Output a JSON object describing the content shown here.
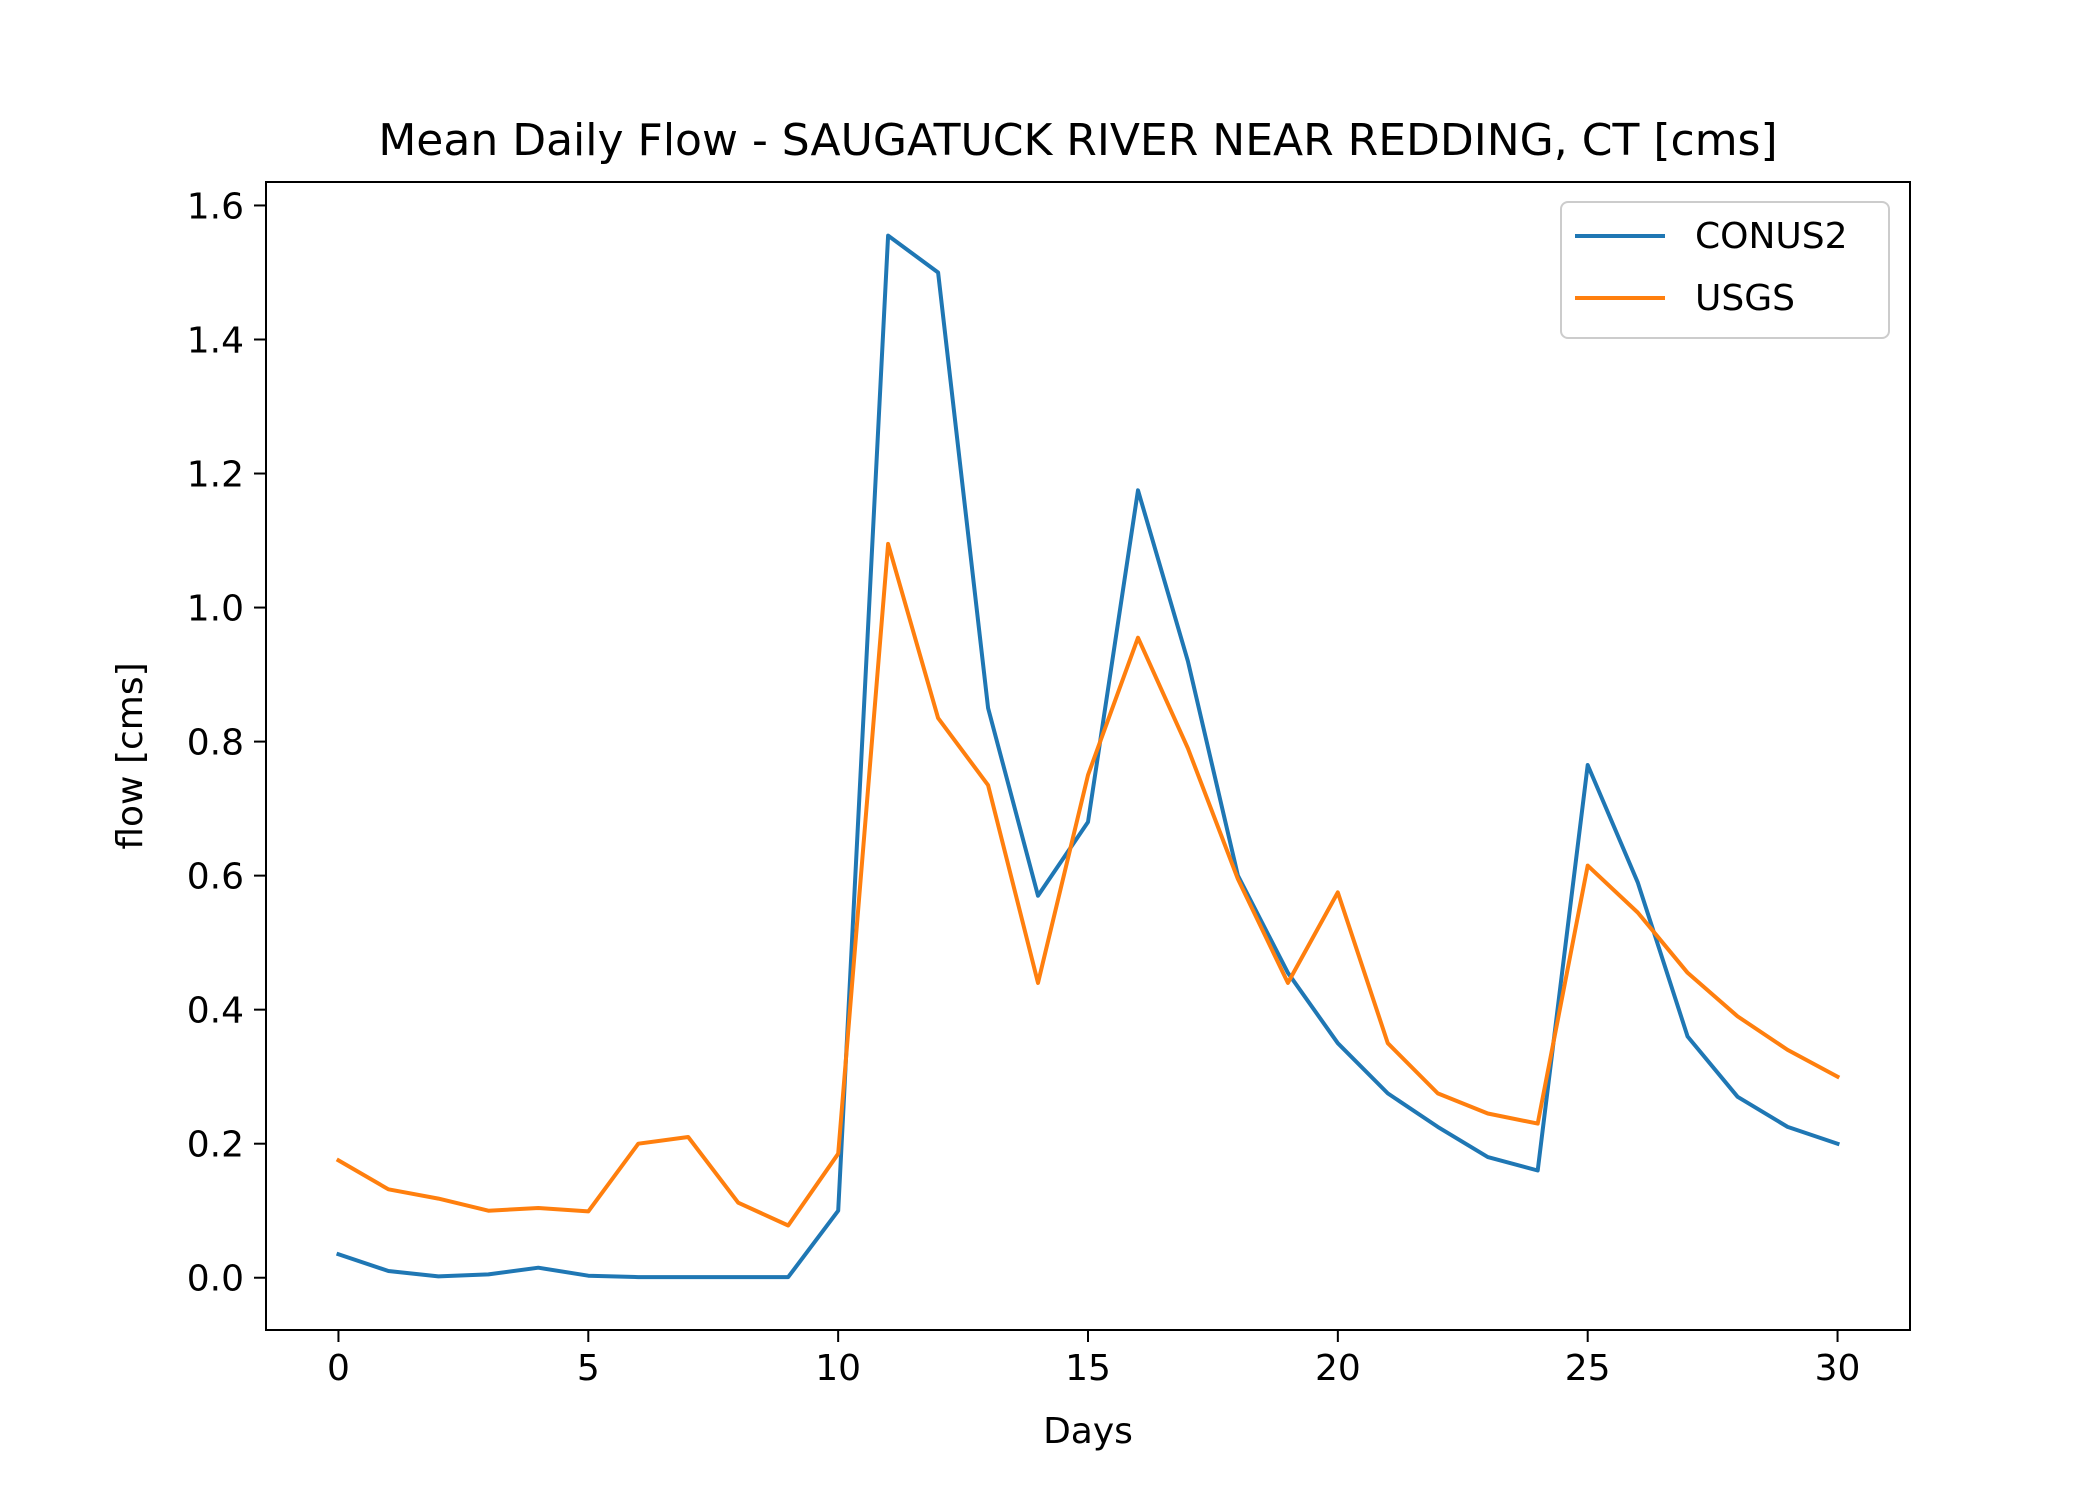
{
  "chart_data": {
    "type": "line",
    "title": "Mean Daily Flow - SAUGATUCK RIVER NEAR REDDING, CT [cms]",
    "xlabel": "Days",
    "ylabel": "flow [cms]",
    "xlim": [
      -1.45,
      31.45
    ],
    "ylim": [
      -0.078,
      1.635
    ],
    "xticks": [
      0,
      5,
      10,
      15,
      20,
      25,
      30
    ],
    "xtick_labels": [
      "0",
      "5",
      "10",
      "15",
      "20",
      "25",
      "30"
    ],
    "yticks": [
      0.0,
      0.2,
      0.4,
      0.6,
      0.8,
      1.0,
      1.2,
      1.4,
      1.6
    ],
    "ytick_labels": [
      "0.0",
      "0.2",
      "0.4",
      "0.6",
      "0.8",
      "1.0",
      "1.2",
      "1.4",
      "1.6"
    ],
    "grid": false,
    "legend_position": "top-right",
    "x": [
      0,
      1,
      2,
      3,
      4,
      5,
      6,
      7,
      8,
      9,
      10,
      11,
      12,
      13,
      14,
      15,
      16,
      17,
      18,
      19,
      20,
      21,
      22,
      23,
      24,
      25,
      26,
      27,
      28,
      29,
      30
    ],
    "series": [
      {
        "name": "CONUS2",
        "color": "#1f77b4",
        "values": [
          0.035,
          0.01,
          0.002,
          0.005,
          0.015,
          0.003,
          0.001,
          0.001,
          0.001,
          0.001,
          0.1,
          1.555,
          1.5,
          0.85,
          0.57,
          0.68,
          1.175,
          0.92,
          0.6,
          0.455,
          0.35,
          0.275,
          0.225,
          0.18,
          0.16,
          0.765,
          0.59,
          0.36,
          0.27,
          0.225,
          0.2
        ]
      },
      {
        "name": "USGS",
        "color": "#ff7f0e",
        "values": [
          0.175,
          0.132,
          0.118,
          0.1,
          0.104,
          0.099,
          0.2,
          0.21,
          0.112,
          0.078,
          0.185,
          1.095,
          0.835,
          0.735,
          0.44,
          0.75,
          0.955,
          0.79,
          0.595,
          0.44,
          0.575,
          0.35,
          0.275,
          0.245,
          0.23,
          0.615,
          0.545,
          0.455,
          0.39,
          0.34,
          0.3
        ]
      }
    ]
  }
}
